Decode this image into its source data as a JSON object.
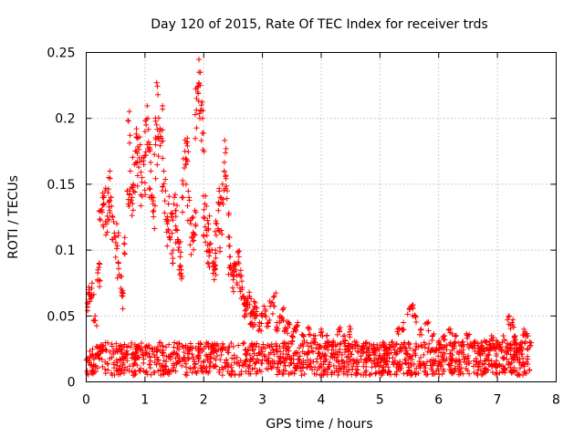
{
  "chart_data": {
    "type": "scatter",
    "title": "Day 120 of 2015, Rate Of TEC Index for receiver trds",
    "xlabel": "GPS time / hours",
    "ylabel": "ROTI / TECUs",
    "xlim": [
      0,
      8
    ],
    "ylim": [
      0,
      0.25
    ],
    "x_ticks": [
      0,
      1,
      2,
      3,
      4,
      5,
      6,
      7,
      8
    ],
    "x_tick_labels": [
      "0",
      "1",
      "2",
      "3",
      "4",
      "5",
      "6",
      "7",
      "8"
    ],
    "y_ticks": [
      0,
      0.05,
      0.1,
      0.15,
      0.2,
      0.25
    ],
    "y_tick_labels": [
      "0",
      "0.05",
      "0.1",
      "0.15",
      "0.2",
      "0.25"
    ],
    "grid": true,
    "marker": "+",
    "color": "#ff0000",
    "series": [
      {
        "name": "ROTI",
        "points": [
          [
            0.02,
            0.06
          ],
          [
            0.05,
            0.07
          ],
          [
            0.08,
            0.065
          ],
          [
            0.1,
            0.075
          ],
          [
            0.15,
            0.05
          ],
          [
            0.2,
            0.085
          ],
          [
            0.22,
            0.09
          ],
          [
            0.25,
            0.13
          ],
          [
            0.28,
            0.14
          ],
          [
            0.3,
            0.135
          ],
          [
            0.32,
            0.145
          ],
          [
            0.35,
            0.12
          ],
          [
            0.38,
            0.155
          ],
          [
            0.4,
            0.13
          ],
          [
            0.42,
            0.14
          ],
          [
            0.45,
            0.125
          ],
          [
            0.5,
            0.11
          ],
          [
            0.52,
            0.12
          ],
          [
            0.55,
            0.09
          ],
          [
            0.6,
            0.08
          ],
          [
            0.62,
            0.065
          ],
          [
            0.65,
            0.105
          ],
          [
            0.7,
            0.145
          ],
          [
            0.72,
            0.198
          ],
          [
            0.75,
            0.16
          ],
          [
            0.78,
            0.14
          ],
          [
            0.8,
            0.15
          ],
          [
            0.82,
            0.165
          ],
          [
            0.85,
            0.175
          ],
          [
            0.88,
            0.185
          ],
          [
            0.9,
            0.17
          ],
          [
            0.92,
            0.18
          ],
          [
            0.95,
            0.155
          ],
          [
            0.98,
            0.165
          ],
          [
            1.0,
            0.19
          ],
          [
            1.02,
            0.195
          ],
          [
            1.05,
            0.2
          ],
          [
            1.08,
            0.175
          ],
          [
            1.1,
            0.16
          ],
          [
            1.12,
            0.14
          ],
          [
            1.15,
            0.13
          ],
          [
            1.18,
            0.18
          ],
          [
            1.2,
            0.195
          ],
          [
            1.22,
            0.218
          ],
          [
            1.25,
            0.19
          ],
          [
            1.28,
            0.185
          ],
          [
            1.3,
            0.207
          ],
          [
            1.32,
            0.16
          ],
          [
            1.35,
            0.145
          ],
          [
            1.38,
            0.12
          ],
          [
            1.4,
            0.135
          ],
          [
            1.42,
            0.11
          ],
          [
            1.45,
            0.125
          ],
          [
            1.48,
            0.1
          ],
          [
            1.5,
            0.14
          ],
          [
            1.52,
            0.13
          ],
          [
            1.55,
            0.115
          ],
          [
            1.58,
            0.105
          ],
          [
            1.6,
            0.095
          ],
          [
            1.62,
            0.085
          ],
          [
            1.65,
            0.15
          ],
          [
            1.68,
            0.175
          ],
          [
            1.7,
            0.165
          ],
          [
            1.72,
            0.185
          ],
          [
            1.75,
            0.14
          ],
          [
            1.78,
            0.12
          ],
          [
            1.8,
            0.11
          ],
          [
            1.82,
            0.125
          ],
          [
            1.85,
            0.13
          ],
          [
            1.88,
            0.215
          ],
          [
            1.9,
            0.22
          ],
          [
            1.92,
            0.235
          ],
          [
            1.94,
            0.225
          ],
          [
            1.96,
            0.21
          ],
          [
            1.98,
            0.2
          ],
          [
            2.0,
            0.125
          ],
          [
            2.02,
            0.135
          ],
          [
            2.05,
            0.115
          ],
          [
            2.08,
            0.12
          ],
          [
            2.1,
            0.1
          ],
          [
            2.12,
            0.105
          ],
          [
            2.15,
            0.09
          ],
          [
            2.18,
            0.085
          ],
          [
            2.2,
            0.1
          ],
          [
            2.22,
            0.12
          ],
          [
            2.25,
            0.13
          ],
          [
            2.28,
            0.14
          ],
          [
            2.3,
            0.115
          ],
          [
            2.32,
            0.15
          ],
          [
            2.35,
            0.16
          ],
          [
            2.38,
            0.177
          ],
          [
            2.4,
            0.145
          ],
          [
            2.42,
            0.11
          ],
          [
            2.45,
            0.095
          ],
          [
            2.48,
            0.085
          ],
          [
            2.5,
            0.08
          ],
          [
            2.52,
            0.09
          ],
          [
            2.55,
            0.085
          ],
          [
            2.58,
            0.098
          ],
          [
            2.6,
            0.095
          ],
          [
            2.62,
            0.08
          ],
          [
            2.65,
            0.07
          ],
          [
            2.68,
            0.065
          ],
          [
            2.7,
            0.06
          ],
          [
            2.72,
            0.055
          ],
          [
            2.75,
            0.06
          ],
          [
            2.78,
            0.065
          ],
          [
            2.8,
            0.05
          ],
          [
            2.82,
            0.045
          ],
          [
            2.85,
            0.055
          ],
          [
            2.88,
            0.06
          ],
          [
            2.9,
            0.05
          ],
          [
            2.95,
            0.045
          ],
          [
            3.0,
            0.05
          ],
          [
            3.05,
            0.055
          ],
          [
            3.1,
            0.045
          ],
          [
            3.15,
            0.06
          ],
          [
            3.2,
            0.065
          ],
          [
            3.25,
            0.045
          ],
          [
            3.3,
            0.05
          ],
          [
            3.35,
            0.055
          ],
          [
            3.4,
            0.04
          ],
          [
            3.45,
            0.045
          ],
          [
            3.5,
            0.035
          ],
          [
            3.55,
            0.04
          ],
          [
            3.6,
            0.045
          ],
          [
            3.7,
            0.035
          ],
          [
            3.8,
            0.04
          ],
          [
            3.9,
            0.035
          ],
          [
            4.0,
            0.04
          ],
          [
            4.1,
            0.035
          ],
          [
            4.2,
            0.03
          ],
          [
            4.3,
            0.04
          ],
          [
            4.4,
            0.035
          ],
          [
            4.5,
            0.04
          ],
          [
            4.6,
            0.03
          ],
          [
            4.7,
            0.025
          ],
          [
            4.8,
            0.02
          ],
          [
            4.9,
            0.025
          ],
          [
            5.0,
            0.02
          ],
          [
            5.1,
            0.025
          ],
          [
            5.2,
            0.03
          ],
          [
            5.3,
            0.04
          ],
          [
            5.4,
            0.045
          ],
          [
            5.5,
            0.055
          ],
          [
            5.55,
            0.058
          ],
          [
            5.6,
            0.05
          ],
          [
            5.7,
            0.04
          ],
          [
            5.8,
            0.045
          ],
          [
            5.9,
            0.035
          ],
          [
            6.0,
            0.03
          ],
          [
            6.1,
            0.035
          ],
          [
            6.2,
            0.04
          ],
          [
            6.3,
            0.035
          ],
          [
            6.4,
            0.03
          ],
          [
            6.5,
            0.035
          ],
          [
            6.6,
            0.03
          ],
          [
            6.7,
            0.025
          ],
          [
            6.8,
            0.03
          ],
          [
            6.9,
            0.035
          ],
          [
            7.0,
            0.03
          ],
          [
            7.1,
            0.035
          ],
          [
            7.2,
            0.05
          ],
          [
            7.25,
            0.045
          ],
          [
            7.3,
            0.035
          ],
          [
            7.4,
            0.03
          ],
          [
            7.45,
            0.04
          ],
          [
            7.5,
            0.035
          ],
          [
            7.55,
            0.03
          ]
        ]
      }
    ],
    "baseline_band": {
      "description_hours_range": [
        0,
        7.55
      ],
      "typical_range": [
        0.005,
        0.03
      ]
    }
  }
}
